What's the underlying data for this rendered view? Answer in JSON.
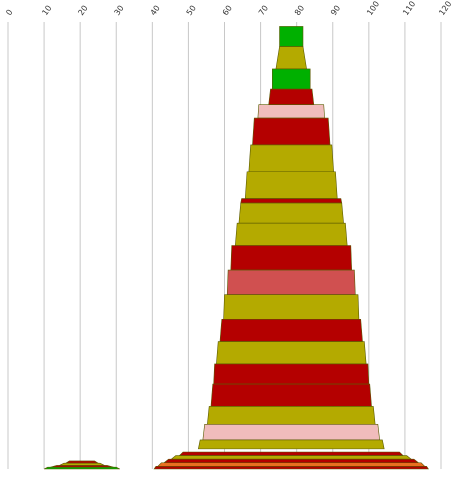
{
  "chart_data": {
    "type": "area",
    "x_ticks": [
      0,
      10,
      20,
      30,
      40,
      50,
      60,
      70,
      80,
      90,
      100,
      110,
      120
    ],
    "xlim": [
      0,
      120
    ],
    "ylim": [
      0,
      100
    ],
    "grid": true,
    "legend": "none",
    "colors": {
      "green": "#00b000",
      "olive": "#b4aa00",
      "red": "#b40000",
      "pink": "#f0bcbc",
      "salmon": "#d05050",
      "orange": "#e87020"
    },
    "shapes": [
      {
        "center": 78.5,
        "bands": [
          {
            "y0": 99.0,
            "y1": 94.5,
            "w0": 6.5,
            "w1": 6.5,
            "color": "green"
          },
          {
            "y0": 94.5,
            "y1": 89.5,
            "w0": 6.5,
            "w1": 8.5,
            "color": "olive"
          },
          {
            "y0": 89.5,
            "y1": 85.0,
            "w0": 10.5,
            "w1": 10.5,
            "color": "green"
          },
          {
            "y0": 85.0,
            "y1": 81.5,
            "w0": 11.5,
            "w1": 12.5,
            "color": "red"
          },
          {
            "y0": 81.5,
            "y1": 78.5,
            "w0": 18.0,
            "w1": 18.5,
            "color": "pink"
          },
          {
            "y0": 78.5,
            "y1": 72.5,
            "w0": 20.5,
            "w1": 21.5,
            "color": "red"
          },
          {
            "y0": 72.5,
            "y1": 66.5,
            "w0": 22.5,
            "w1": 23.5,
            "color": "olive"
          },
          {
            "y0": 66.5,
            "y1": 60.5,
            "w0": 24.5,
            "w1": 25.5,
            "color": "olive"
          },
          {
            "y0": 60.5,
            "y1": 59.5,
            "w0": 27.5,
            "w1": 28.0,
            "color": "red"
          },
          {
            "y0": 59.5,
            "y1": 55.0,
            "w0": 28.0,
            "w1": 29.0,
            "color": "olive"
          },
          {
            "y0": 55.0,
            "y1": 50.0,
            "w0": 30.0,
            "w1": 31.0,
            "color": "olive"
          },
          {
            "y0": 50.0,
            "y1": 44.5,
            "w0": 33.0,
            "w1": 33.5,
            "color": "red"
          },
          {
            "y0": 44.5,
            "y1": 39.0,
            "w0": 35.0,
            "w1": 35.5,
            "color": "salmon"
          },
          {
            "y0": 39.0,
            "y1": 33.5,
            "w0": 37.0,
            "w1": 37.5,
            "color": "olive"
          },
          {
            "y0": 33.5,
            "y1": 28.5,
            "w0": 38.5,
            "w1": 39.5,
            "color": "red"
          },
          {
            "y0": 28.5,
            "y1": 23.5,
            "w0": 40.5,
            "w1": 41.5,
            "color": "olive"
          },
          {
            "y0": 23.5,
            "y1": 19.0,
            "w0": 42.5,
            "w1": 43.0,
            "color": "red"
          },
          {
            "y0": 19.0,
            "y1": 14.0,
            "w0": 43.5,
            "w1": 44.5,
            "color": "red"
          },
          {
            "y0": 14.0,
            "y1": 10.0,
            "w0": 45.5,
            "w1": 46.5,
            "color": "olive"
          },
          {
            "y0": 10.0,
            "y1": 6.5,
            "w0": 48.0,
            "w1": 49.0,
            "color": "pink"
          },
          {
            "y0": 6.5,
            "y1": 4.5,
            "w0": 50.5,
            "w1": 51.5,
            "color": "olive"
          },
          {
            "y0": 3.8,
            "y1": 3.0,
            "w0": 60.0,
            "w1": 62.0,
            "color": "red"
          },
          {
            "y0": 3.0,
            "y1": 2.2,
            "w0": 64.0,
            "w1": 66.5,
            "color": "olive"
          },
          {
            "y0": 2.2,
            "y1": 1.4,
            "w0": 68.0,
            "w1": 70.5,
            "color": "red"
          },
          {
            "y0": 1.4,
            "y1": 0.6,
            "w0": 72.0,
            "w1": 74.0,
            "color": "orange"
          },
          {
            "y0": 0.6,
            "y1": 0.0,
            "w0": 75.0,
            "w1": 76.0,
            "color": "red"
          }
        ]
      },
      {
        "center": 20.5,
        "bands": [
          {
            "y0": 1.8,
            "y1": 1.3,
            "w0": 7.0,
            "w1": 9.0,
            "color": "red"
          },
          {
            "y0": 1.3,
            "y1": 0.8,
            "w0": 10.0,
            "w1": 12.5,
            "color": "olive"
          },
          {
            "y0": 0.8,
            "y1": 0.4,
            "w0": 14.0,
            "w1": 17.5,
            "color": "red"
          },
          {
            "y0": 0.4,
            "y1": 0.0,
            "w0": 19.0,
            "w1": 21.0,
            "color": "green"
          }
        ]
      }
    ]
  }
}
